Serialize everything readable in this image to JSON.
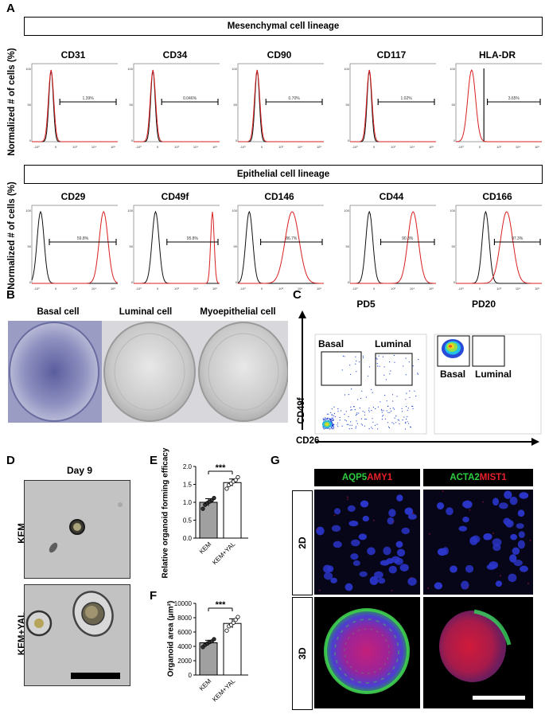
{
  "panelA": {
    "letter": "A",
    "banner_mes": "Mesenchymal cell lineage",
    "banner_epi": "Epithelial cell lineage",
    "ylabel": "Normalized # of cells (%)",
    "row1": [
      {
        "marker": "CD31",
        "gate": "1.39%"
      },
      {
        "marker": "CD34",
        "gate": "0.046%"
      },
      {
        "marker": "CD90",
        "gate": "0.70%"
      },
      {
        "marker": "CD117",
        "gate": "1.02%"
      },
      {
        "marker": "HLA-DR",
        "gate": "3.65%"
      }
    ],
    "row2": [
      {
        "marker": "CD29",
        "gate": "59.8%"
      },
      {
        "marker": "CD49f",
        "gate": "95.8%"
      },
      {
        "marker": "CD146",
        "gate": "86.7%"
      },
      {
        "marker": "CD44",
        "gate": "90.3%"
      },
      {
        "marker": "CD166",
        "gate": "97.3%"
      }
    ],
    "colors": {
      "control": "#111111",
      "stained": "#d81f1f"
    }
  },
  "panelB": {
    "letter": "B",
    "labels": [
      "Basal cell",
      "Luminal cell",
      "Myoepithelial cell"
    ]
  },
  "panelC": {
    "letter": "C",
    "plots": [
      {
        "title": "PD5",
        "gate1": "Basal",
        "gate2": "Luminal"
      },
      {
        "title": "PD20",
        "gate1": "Basal",
        "gate2": "Luminal"
      }
    ],
    "ylabel": "CD49f",
    "xlabel": "CD26"
  },
  "panelD": {
    "letter": "D",
    "title": "Day 9",
    "rows": [
      "KEM",
      "KEM+YAL"
    ]
  },
  "panelE": {
    "letter": "E",
    "chart_data": {
      "type": "bar",
      "categories": [
        "KEM",
        "KEM+YAL"
      ],
      "values": [
        1.0,
        1.55
      ],
      "points": [
        [
          0.82,
          0.93,
          0.98,
          1.02,
          1.06,
          1.12
        ],
        [
          1.38,
          1.48,
          1.52,
          1.58,
          1.62,
          1.7
        ]
      ],
      "errors": [
        0.1,
        0.1
      ],
      "ylabel": "Relative organoid forming efficacy",
      "ylim": [
        0,
        2.0
      ],
      "yticks": [
        "0.0",
        "0.5",
        "1.0",
        "1.5",
        "2.0"
      ],
      "significance": "***"
    }
  },
  "panelF": {
    "letter": "F",
    "chart_data": {
      "type": "bar",
      "categories": [
        "KEM",
        "KEM+YAL"
      ],
      "values": [
        4500,
        7200
      ],
      "points": [
        [
          3900,
          4200,
          4400,
          4600,
          4700,
          5000
        ],
        [
          6200,
          6800,
          7000,
          7300,
          7700,
          8100
        ]
      ],
      "errors": [
        350,
        650
      ],
      "ylabel": "Organoid area (μm²)",
      "ylim": [
        0,
        10000
      ],
      "yticks": [
        "0",
        "2000",
        "4000",
        "6000",
        "8000",
        "10000"
      ],
      "significance": "***"
    }
  },
  "panelG": {
    "letter": "G",
    "col1": {
      "green": "AQP5",
      "red": "AMY1"
    },
    "col2": {
      "green": "ACTA2",
      "red": "MIST1"
    },
    "rows": [
      "2D",
      "3D"
    ],
    "colors": {
      "green": "#2ecc40",
      "red": "#e8202a",
      "blue": "#1f2bd8"
    }
  }
}
